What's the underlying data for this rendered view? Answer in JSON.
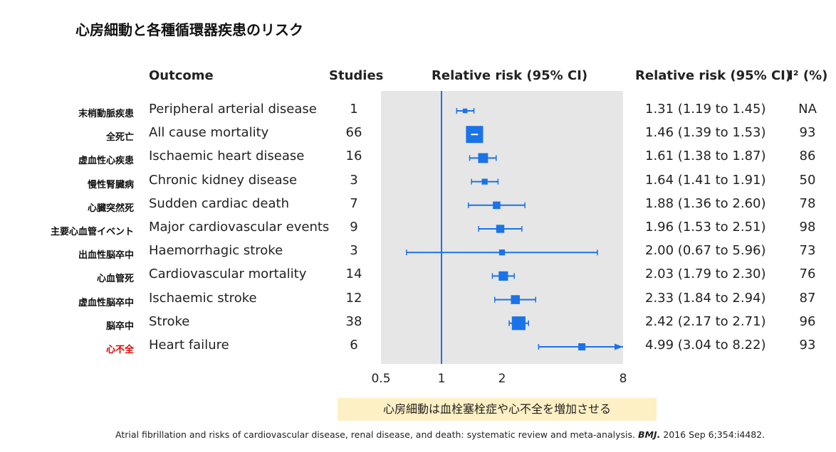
{
  "title": "心房細動と各種循環器疾患のリスク",
  "headers": {
    "outcome": "Outcome",
    "studies": "Studies",
    "plot": "Relative risk (95% CI)",
    "rr": "Relative risk (95% CI)",
    "i2": "I² (%)"
  },
  "rows": [
    {
      "jp": "末梢動脈疾患",
      "outcome": "Peripheral arterial disease",
      "studies": "1",
      "rr_text": "1.31 (1.19 to 1.45)",
      "i2": "NA"
    },
    {
      "jp": "全死亡",
      "outcome": "All cause mortality",
      "studies": "66",
      "rr_text": "1.46 (1.39 to 1.53)",
      "i2": "93"
    },
    {
      "jp": "虚血性心疾患",
      "outcome": "Ischaemic heart disease",
      "studies": "16",
      "rr_text": "1.61 (1.38 to 1.87)",
      "i2": "86"
    },
    {
      "jp": "慢性腎臓病",
      "outcome": "Chronic kidney disease",
      "studies": "3",
      "rr_text": "1.64 (1.41 to 1.91)",
      "i2": "50"
    },
    {
      "jp": "心臓突然死",
      "outcome": "Sudden cardiac death",
      "studies": "7",
      "rr_text": "1.88 (1.36 to 2.60)",
      "i2": "78"
    },
    {
      "jp": "主要心血管イベント",
      "outcome": "Major cardiovascular events",
      "studies": "9",
      "rr_text": "1.96 (1.53 to 2.51)",
      "i2": "98"
    },
    {
      "jp": "出血性脳卒中",
      "outcome": "Haemorrhagic stroke",
      "studies": "3",
      "rr_text": "2.00 (0.67 to 5.96)",
      "i2": "73"
    },
    {
      "jp": "心血管死",
      "outcome": "Cardiovascular mortality",
      "studies": "14",
      "rr_text": "2.03 (1.79 to 2.30)",
      "i2": "76"
    },
    {
      "jp": "虚血性脳卒中",
      "outcome": "Ischaemic stroke",
      "studies": "12",
      "rr_text": "2.33 (1.84 to 2.94)",
      "i2": "87"
    },
    {
      "jp": "脳卒中",
      "outcome": "Stroke",
      "studies": "38",
      "rr_text": "2.42 (2.17 to 2.71)",
      "i2": "96"
    },
    {
      "jp": "心不全",
      "outcome": "Heart failure",
      "studies": "6",
      "rr_text": "4.99 (3.04 to 8.22)",
      "i2": "93"
    }
  ],
  "highlight_color": "#e00000",
  "note": "心房細動は血栓塞栓症や心不全を増加させる",
  "citation_prefix": "Atrial fibrillation and risks of cardiovascular disease, renal disease, and death: systematic review and meta-analysis. ",
  "citation_journal": "BMJ.",
  "citation_suffix": " 2016 Sep 6;354:i4482.",
  "chart_data": {
    "type": "forest",
    "scale": "log",
    "xlim": [
      0.5,
      8
    ],
    "xticks": [
      0.5,
      1,
      2,
      8
    ],
    "xtick_labels": [
      "0.5",
      "1",
      "2",
      "8"
    ],
    "reference_line": 1,
    "categories": [
      "Peripheral arterial disease",
      "All cause mortality",
      "Ischaemic heart disease",
      "Chronic kidney disease",
      "Sudden cardiac death",
      "Major cardiovascular events",
      "Haemorrhagic stroke",
      "Cardiovascular mortality",
      "Ischaemic stroke",
      "Stroke",
      "Heart failure"
    ],
    "estimate": [
      1.31,
      1.46,
      1.61,
      1.64,
      1.88,
      1.96,
      2.0,
      2.03,
      2.33,
      2.42,
      4.99
    ],
    "lower": [
      1.19,
      1.39,
      1.38,
      1.41,
      1.36,
      1.53,
      0.67,
      1.79,
      1.84,
      2.17,
      3.04
    ],
    "upper": [
      1.45,
      1.53,
      1.87,
      1.91,
      2.6,
      2.51,
      5.96,
      2.3,
      2.94,
      2.71,
      8.22
    ],
    "studies": [
      1,
      66,
      16,
      3,
      7,
      9,
      3,
      14,
      12,
      38,
      6
    ],
    "colors": {
      "marker": "#1a73e8",
      "panel": "#e6e6e6",
      "ref_line": "#1a73e8"
    }
  }
}
